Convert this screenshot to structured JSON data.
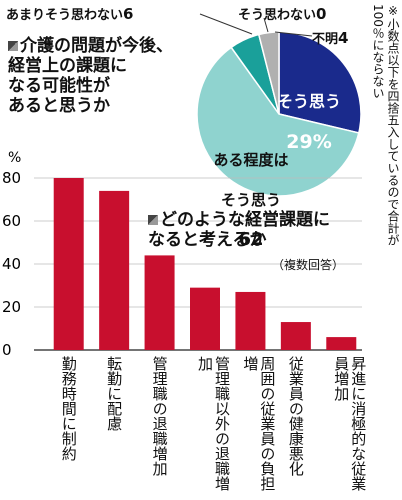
{
  "pie": {
    "question": "介護の問題が今後、\n経営上の課題に\nなる可能性が\nあると思うか",
    "slices": [
      {
        "label": "そう思う",
        "value": 29,
        "color": "#1a2a8c"
      },
      {
        "label": "ある程度はそう思う",
        "value": 62,
        "color": "#8fd3cf"
      },
      {
        "label": "あまりそう思わない",
        "value": 6,
        "color": "#1aa09a"
      },
      {
        "label": "そう思わない",
        "value": 0,
        "color": "#1aa09a"
      },
      {
        "label": "不明",
        "value": 4,
        "color": "#b0b0b0"
      }
    ],
    "labels": {
      "sou_omou_text": "そう思う",
      "sou_omou_pct": "29%",
      "aru_line1": "ある程度は",
      "aru_line2": "そう思う",
      "aru_num": "62",
      "amari_text": "あまりそう思わない",
      "amari_num": "6",
      "soomowanai_text": "そう思わない",
      "soomowanai_num": "0",
      "fumei_text": "不明",
      "fumei_num": "4"
    },
    "footnote": "※小数点以下を四捨五入しているので合計が100％にならない"
  },
  "chart_data": {
    "type": "bar",
    "title": "どのような経営課題に\nなると考えるか",
    "note": "（複数回答）",
    "ylabel": "%",
    "ylim": [
      0,
      80
    ],
    "yticks": [
      0,
      20,
      40,
      60,
      80
    ],
    "categories": [
      "勤務時間に制約",
      "転勤に配慮",
      "管理職の退職増加",
      "管理職以外の退職増加",
      "周囲の従業員の負担増",
      "従業員の健康悪化",
      "昇進に消極的な従業員増加"
    ],
    "values": [
      80,
      74,
      44,
      29,
      27,
      13,
      6
    ],
    "bar_color": "#c80f2e"
  }
}
